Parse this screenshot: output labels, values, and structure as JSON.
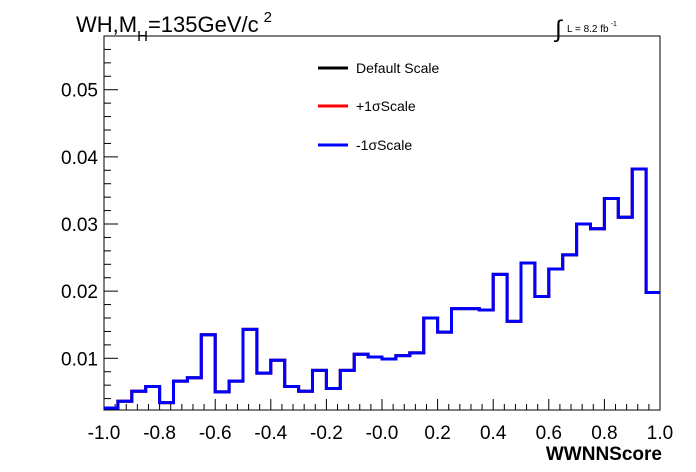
{
  "chart_data": {
    "type": "step",
    "title": {
      "main": "WH,M",
      "sub": "H",
      "value": "=135GeV/c",
      "sup": "2"
    },
    "lumi": {
      "integral": "∫",
      "text": "L = 8.2 fb",
      "sup": "-1"
    },
    "xlabel": "WWNNScore",
    "xlim": [
      -1.0,
      1.0
    ],
    "ylim": [
      0.0023,
      0.058
    ],
    "xticks": [
      -1.0,
      -0.8,
      -0.6,
      -0.4,
      -0.2,
      0.0,
      0.2,
      0.4,
      0.6,
      0.8,
      1.0
    ],
    "xtick_labels": [
      "-1.0",
      "-0.8",
      "-0.6",
      "-0.4",
      "-0.2",
      "-0.0",
      "0.2",
      "0.4",
      "0.6",
      "0.8",
      "1.0"
    ],
    "yticks": [
      0.01,
      0.02,
      0.03,
      0.04,
      0.05
    ],
    "ytick_labels": [
      "0.01",
      "0.02",
      "0.03",
      "0.04",
      "0.05"
    ],
    "bin_edges": [
      -1.0,
      -0.95,
      -0.9,
      -0.85,
      -0.8,
      -0.75,
      -0.7,
      -0.65,
      -0.6,
      -0.55,
      -0.5,
      -0.45,
      -0.4,
      -0.35,
      -0.3,
      -0.25,
      -0.2,
      -0.15,
      -0.1,
      -0.05,
      0.0,
      0.05,
      0.1,
      0.15,
      0.2,
      0.25,
      0.3,
      0.35,
      0.4,
      0.45,
      0.5,
      0.55,
      0.6,
      0.65,
      0.7,
      0.75,
      0.8,
      0.85,
      0.9,
      0.95,
      1.0
    ],
    "series": [
      {
        "name": "Default Scale",
        "color": "#000000",
        "values": [
          0.0026,
          0.0036,
          0.0051,
          0.0058,
          0.0034,
          0.0066,
          0.0071,
          0.0135,
          0.005,
          0.0066,
          0.0143,
          0.0078,
          0.0097,
          0.0058,
          0.0051,
          0.0082,
          0.0055,
          0.0082,
          0.0106,
          0.0102,
          0.0099,
          0.0104,
          0.0108,
          0.016,
          0.0139,
          0.0174,
          0.0174,
          0.0172,
          0.0225,
          0.0155,
          0.0242,
          0.0192,
          0.0233,
          0.0254,
          0.03,
          0.0293,
          0.0338,
          0.031,
          0.0382,
          0.0198
        ]
      },
      {
        "name": "+1σScale",
        "color": "#ff0000",
        "values": [
          0.0026,
          0.0036,
          0.0051,
          0.0058,
          0.0034,
          0.0066,
          0.0071,
          0.0135,
          0.005,
          0.0066,
          0.0143,
          0.0078,
          0.0097,
          0.0058,
          0.0051,
          0.0082,
          0.0055,
          0.0082,
          0.0106,
          0.0102,
          0.0099,
          0.0104,
          0.0108,
          0.016,
          0.0139,
          0.0174,
          0.0174,
          0.0172,
          0.0225,
          0.0155,
          0.0242,
          0.0192,
          0.0233,
          0.0254,
          0.03,
          0.0293,
          0.0338,
          0.031,
          0.0382,
          0.0198
        ]
      },
      {
        "name": "-1σScale",
        "color": "#0000ff",
        "values": [
          0.0026,
          0.0036,
          0.0051,
          0.0058,
          0.0034,
          0.0066,
          0.0071,
          0.0135,
          0.005,
          0.0066,
          0.0143,
          0.0078,
          0.0097,
          0.0058,
          0.0051,
          0.0082,
          0.0055,
          0.0082,
          0.0106,
          0.0102,
          0.0099,
          0.0104,
          0.0108,
          0.016,
          0.0139,
          0.0174,
          0.0174,
          0.0172,
          0.0225,
          0.0155,
          0.0242,
          0.0192,
          0.0233,
          0.0254,
          0.03,
          0.0293,
          0.0338,
          0.031,
          0.0382,
          0.0198
        ]
      }
    ],
    "legend": {
      "position": "top-center",
      "entries": [
        "Default Scale",
        "+1σScale",
        "-1σScale"
      ]
    },
    "grid": false
  }
}
